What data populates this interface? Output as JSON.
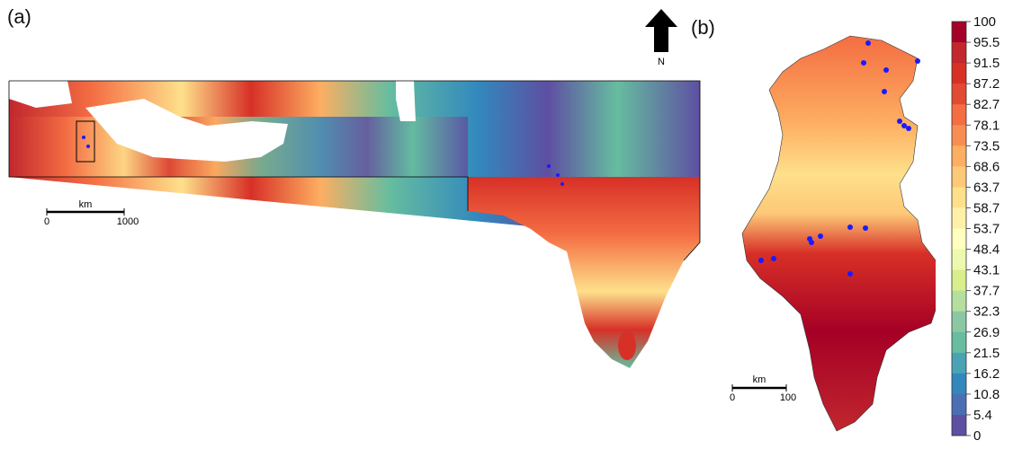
{
  "panels": {
    "a": {
      "label": "(a)"
    },
    "b": {
      "label": "(b)"
    }
  },
  "north_arrow": {
    "label": "N"
  },
  "scalebar_a": {
    "unit": "km",
    "start": "0",
    "end": "1000"
  },
  "scalebar_b": {
    "unit": "km",
    "start": "0",
    "end": "100"
  },
  "legend": {
    "ticks": [
      "100",
      "95.5",
      "91.5",
      "87.2",
      "82.7",
      "78.1",
      "73.5",
      "68.6",
      "63.7",
      "58.7",
      "53.7",
      "48.4",
      "43.1",
      "37.7",
      "32.3",
      "26.9",
      "21.5",
      "16.2",
      "10.8",
      "5.4",
      "0"
    ],
    "colors": [
      "#a50026",
      "#c1272d",
      "#d73027",
      "#e34a33",
      "#f46d43",
      "#f88d52",
      "#fdae61",
      "#fdc877",
      "#fee08b",
      "#fff0a8",
      "#ffffbf",
      "#eef8ae",
      "#d9ef8b",
      "#b5df9f",
      "#8cc7a4",
      "#66bd9f",
      "#4aa3b5",
      "#3288bd",
      "#4b6fb3",
      "#5e4fa2",
      "#4a3a8c"
    ]
  },
  "colors": {
    "hot": "#a50026",
    "warm": "#f46d43",
    "mid": "#fee08b",
    "cool": "#66bd9f",
    "cold": "#5e4fa2",
    "points": "#1a1aff"
  }
}
